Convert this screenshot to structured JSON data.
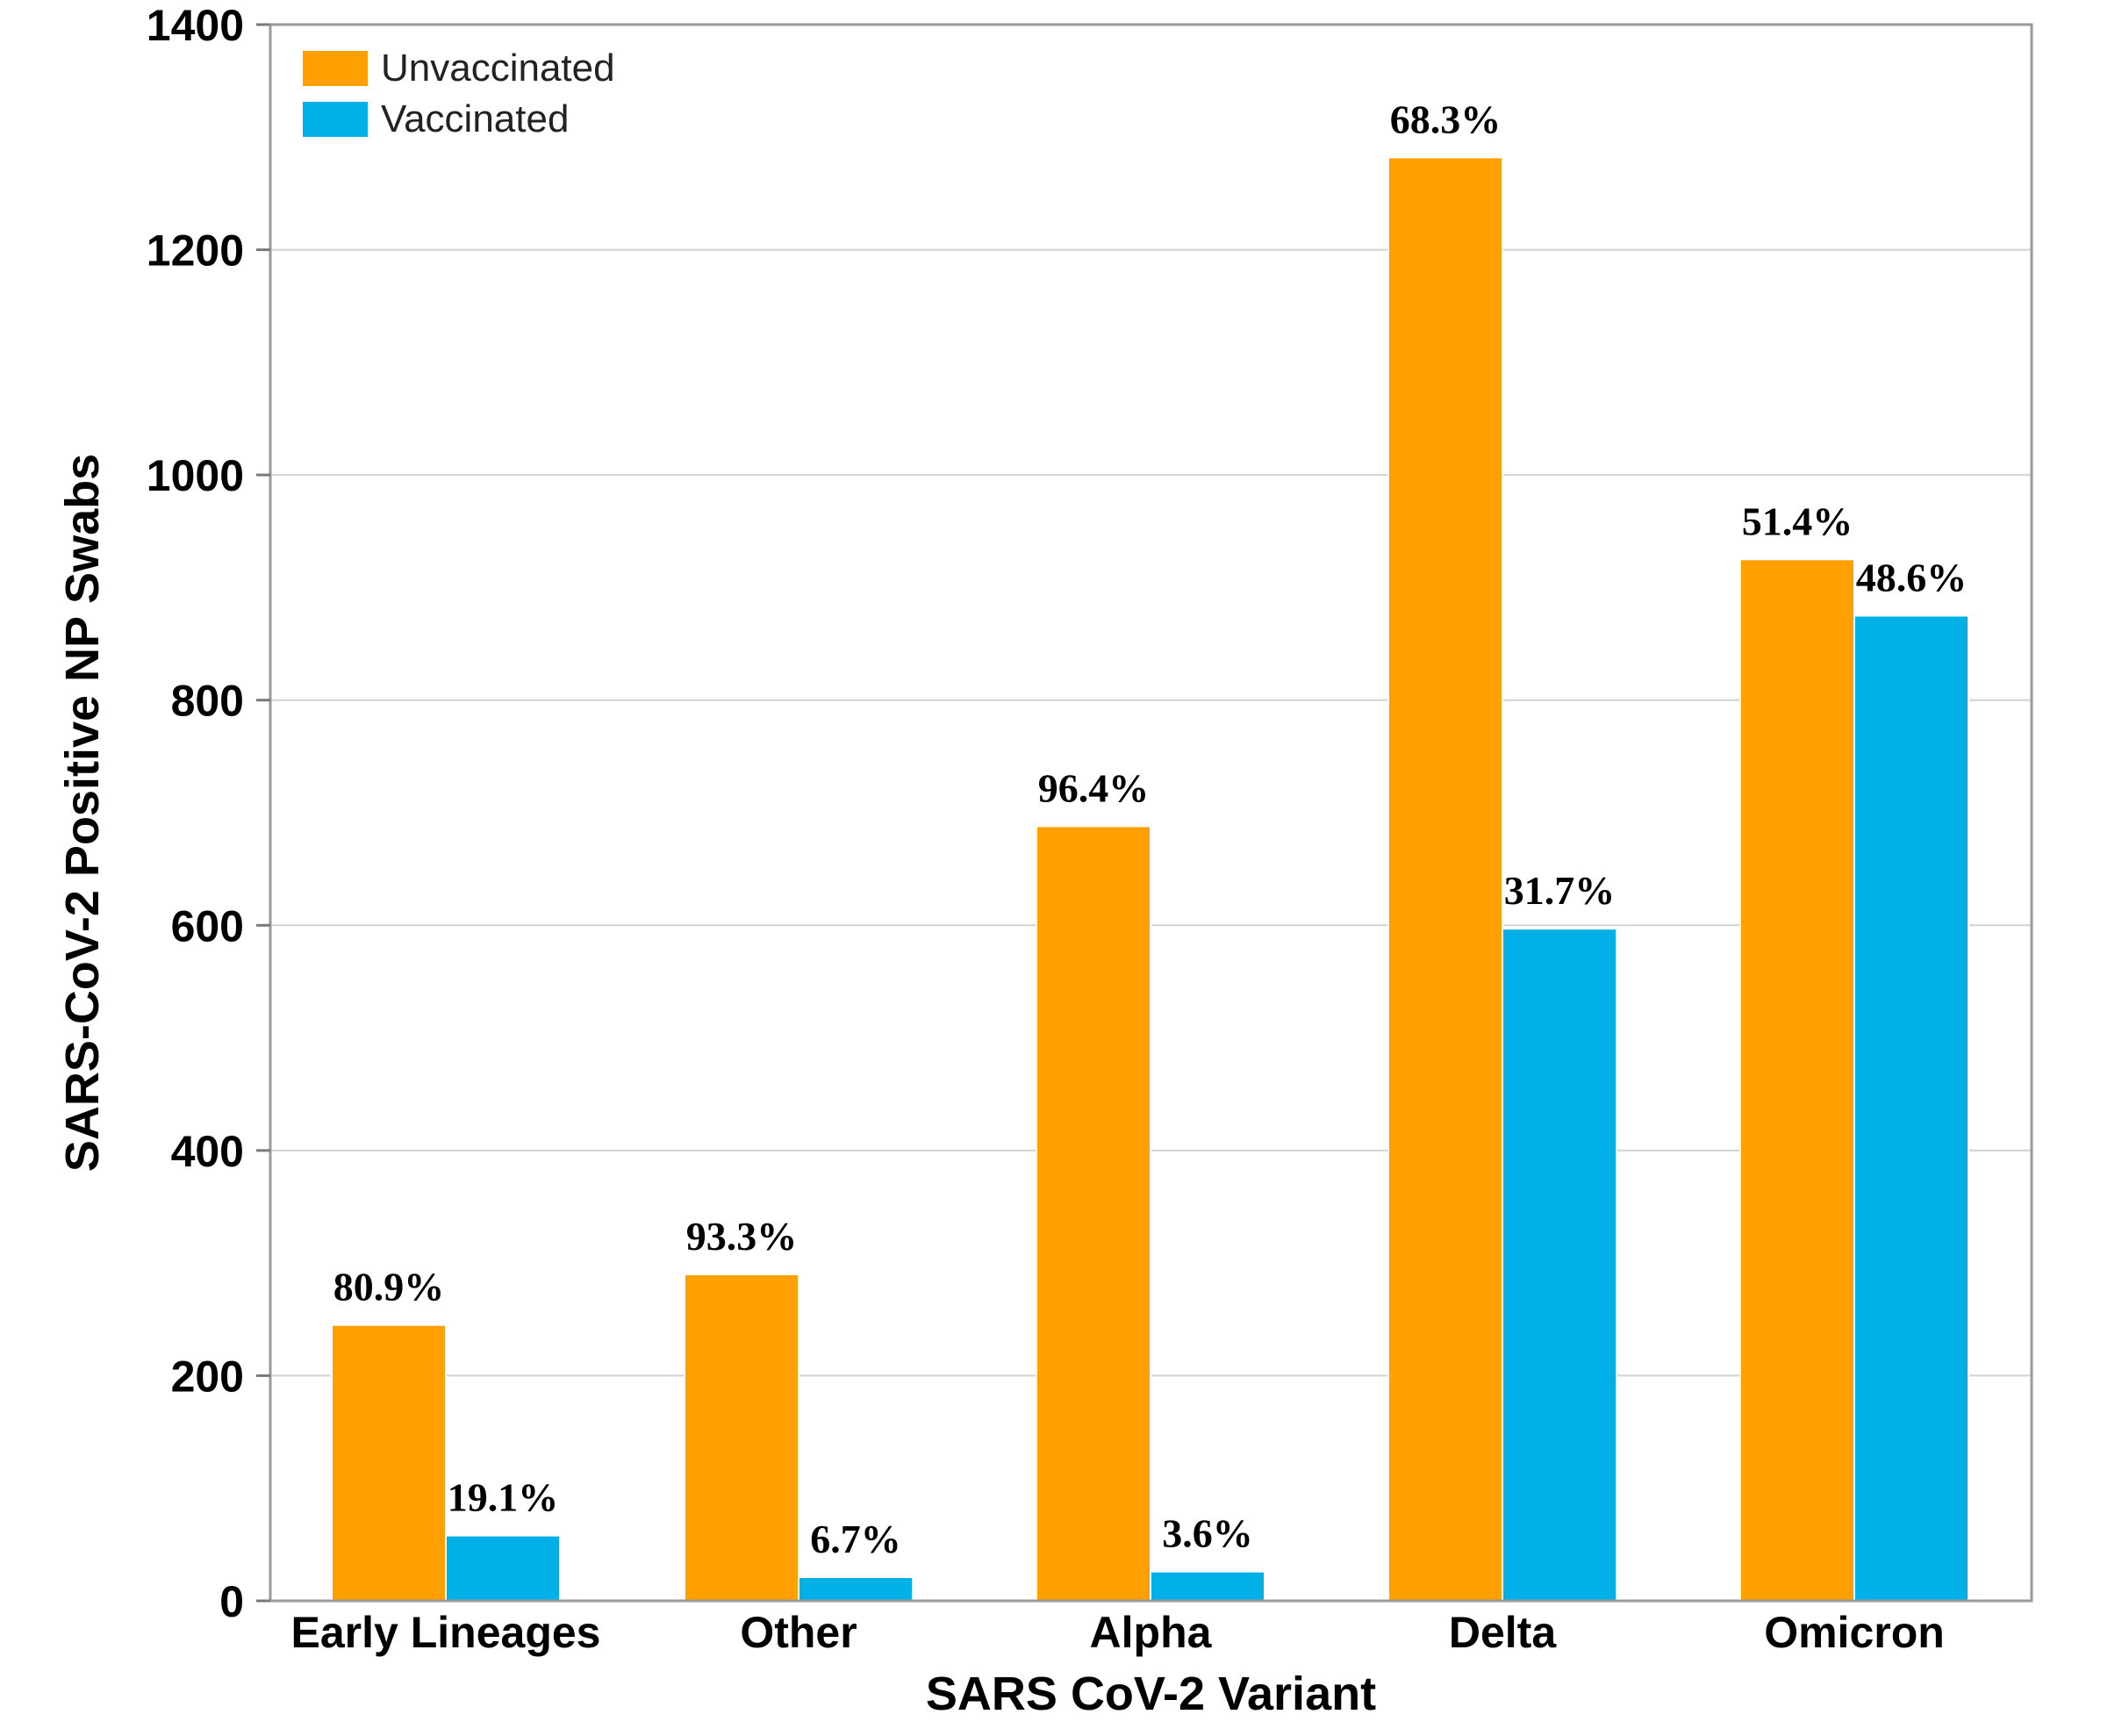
{
  "chart_data": {
    "type": "bar",
    "title": "",
    "xlabel": "SARS CoV-2 Variant",
    "ylabel": "SARS-CoV-2 Positive NP Swabs",
    "ylim": [
      0,
      1400
    ],
    "yticks": [
      0,
      200,
      400,
      600,
      800,
      1000,
      1200,
      1400
    ],
    "grid": true,
    "legend_position": "top-left",
    "categories": [
      "Early Lineages",
      "Other",
      "Alpha",
      "Delta",
      "Omicron"
    ],
    "series": [
      {
        "name": "Unvaccinated",
        "color": "#FF9F00",
        "values": [
          245,
          290,
          688,
          1282,
          925
        ],
        "labels": [
          "80.9%",
          "93.3%",
          "96.4%",
          "68.3%",
          "51.4%"
        ]
      },
      {
        "name": "Vaccinated",
        "color": "#00B0E6",
        "values": [
          58,
          21,
          26,
          597,
          875
        ],
        "labels": [
          "19.1%",
          "6.7%",
          "3.6%",
          "31.7%",
          "48.6%"
        ]
      }
    ]
  }
}
